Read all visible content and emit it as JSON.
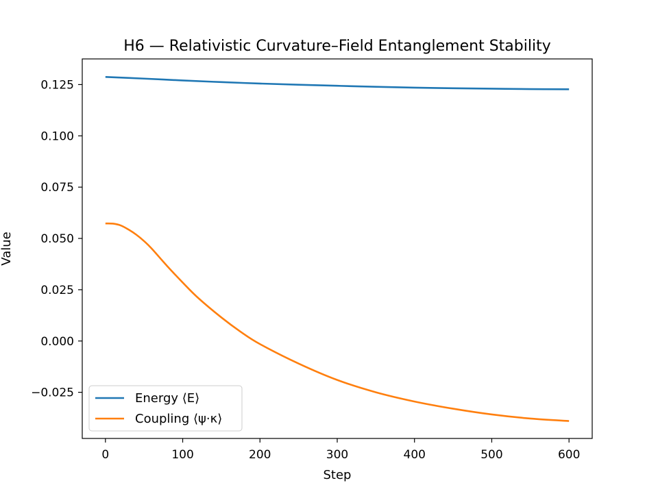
{
  "chart_data": {
    "type": "line",
    "title": "H6 — Relativistic Curvature–Field Entanglement Stability",
    "xlabel": "Step",
    "ylabel": "Value",
    "xlim": [
      -30,
      630
    ],
    "ylim": [
      -0.0475,
      0.1375
    ],
    "xticks": [
      0,
      100,
      200,
      300,
      400,
      500,
      600
    ],
    "xtick_labels": [
      "0",
      "100",
      "200",
      "300",
      "400",
      "500",
      "600"
    ],
    "yticks": [
      -0.025,
      0.0,
      0.025,
      0.05,
      0.075,
      0.1,
      0.125
    ],
    "ytick_labels": [
      "−0.025",
      "0.000",
      "0.025",
      "0.050",
      "0.075",
      "0.100",
      "0.125"
    ],
    "grid": false,
    "legend_position": "lower left",
    "series": [
      {
        "name": "Energy ⟨E⟩",
        "color": "#1f77b4",
        "x": [
          0,
          50,
          100,
          150,
          200,
          250,
          300,
          350,
          400,
          450,
          500,
          550,
          600
        ],
        "y": [
          0.1287,
          0.1279,
          0.127,
          0.1262,
          0.1255,
          0.1249,
          0.1244,
          0.1239,
          0.1235,
          0.1232,
          0.123,
          0.1228,
          0.1227
        ]
      },
      {
        "name": "Coupling ⟨ψ·κ⟩",
        "color": "#ff7f0e",
        "x": [
          0,
          10,
          20,
          30,
          40,
          50,
          60,
          80,
          100,
          120,
          150,
          175,
          200,
          250,
          300,
          350,
          400,
          450,
          500,
          550,
          600
        ],
        "y": [
          0.0573,
          0.0572,
          0.0563,
          0.0543,
          0.0518,
          0.0487,
          0.045,
          0.0365,
          0.0285,
          0.021,
          0.0115,
          0.0045,
          -0.0015,
          -0.011,
          -0.019,
          -0.025,
          -0.0295,
          -0.033,
          -0.0358,
          -0.0378,
          -0.039
        ]
      }
    ]
  }
}
